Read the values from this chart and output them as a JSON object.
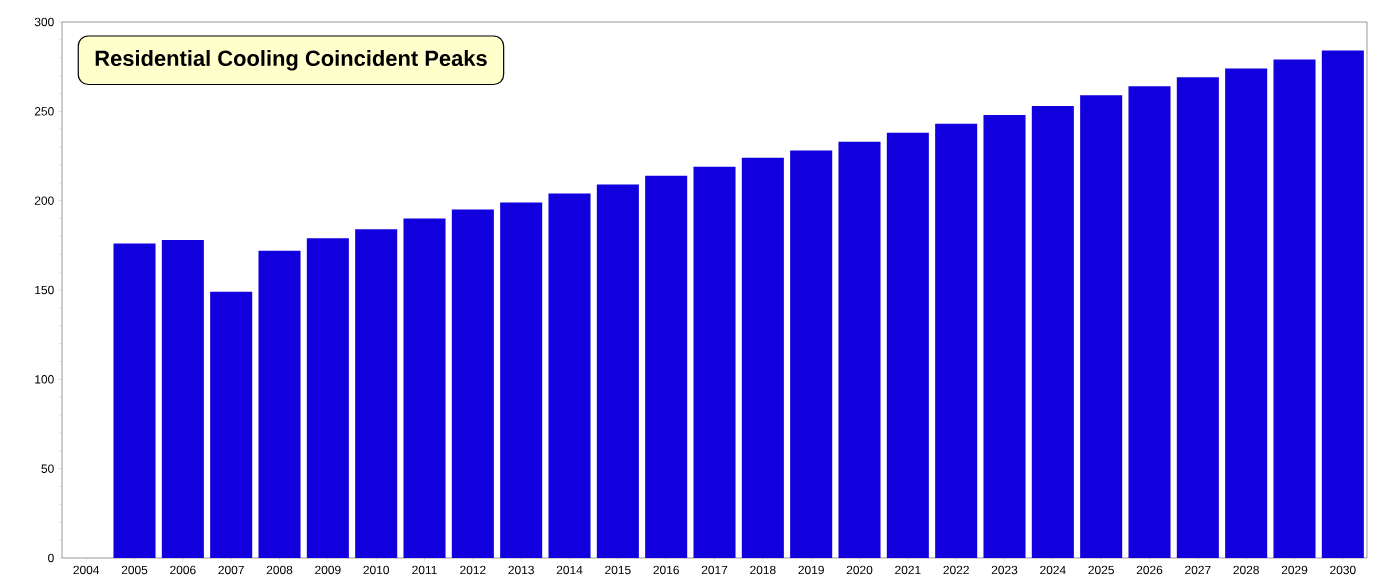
{
  "chart_data": {
    "type": "bar",
    "title": "Residential Cooling Coincident Peaks",
    "categories": [
      "2004",
      "2005",
      "2006",
      "2007",
      "2008",
      "2009",
      "2010",
      "2011",
      "2012",
      "2013",
      "2014",
      "2015",
      "2016",
      "2017",
      "2018",
      "2019",
      "2020",
      "2021",
      "2022",
      "2023",
      "2024",
      "2025",
      "2026",
      "2027",
      "2028",
      "2029",
      "2030"
    ],
    "values": [
      null,
      176,
      178,
      149,
      172,
      179,
      184,
      190,
      195,
      199,
      204,
      209,
      214,
      219,
      224,
      228,
      233,
      238,
      243,
      248,
      253,
      259,
      264,
      269,
      274,
      279,
      284
    ],
    "color": "#1100dd",
    "ylim": [
      0,
      300
    ],
    "yticks": [
      0,
      50,
      100,
      150,
      200,
      250,
      300
    ]
  }
}
